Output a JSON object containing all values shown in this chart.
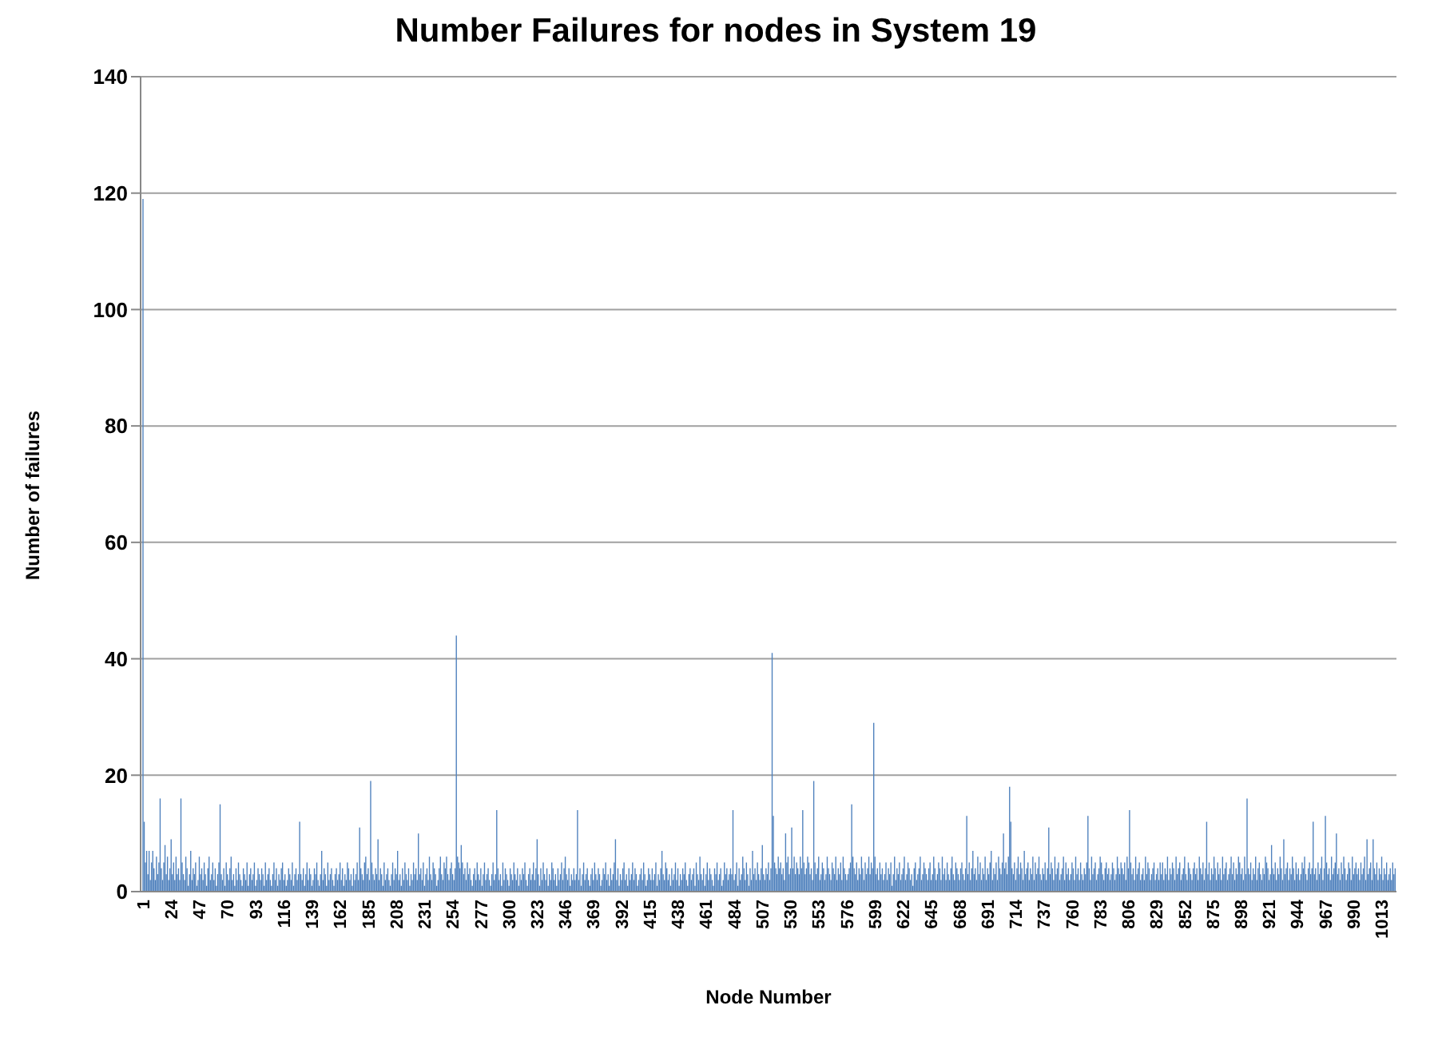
{
  "chart_data": {
    "type": "bar",
    "title": "Number Failures for nodes in System 19",
    "xlabel": "Node Number",
    "ylabel": "Number of failures",
    "x": [
      1,
      2,
      3,
      4,
      5,
      6,
      7,
      8,
      9,
      10,
      11,
      12,
      13,
      14,
      15,
      16,
      17,
      18,
      19,
      20,
      21,
      22,
      23,
      24,
      25,
      26,
      27,
      28,
      29,
      30,
      31,
      32,
      33,
      34,
      35,
      36,
      37,
      38,
      39,
      40,
      41,
      42,
      43,
      44,
      45,
      46,
      47,
      48,
      49,
      50,
      51,
      52,
      53,
      54,
      55,
      56,
      57,
      58,
      59,
      60,
      61,
      62,
      63,
      64,
      65,
      66,
      67,
      68,
      69,
      70,
      71,
      72,
      73,
      74,
      75,
      76,
      77,
      78,
      79,
      80,
      81,
      82,
      83,
      84,
      85,
      86,
      87,
      88,
      89,
      90,
      91,
      92,
      93,
      94,
      95,
      96,
      97,
      98,
      99,
      100,
      101,
      102,
      103,
      104,
      105,
      106,
      107,
      108,
      109,
      110,
      111,
      112,
      113,
      114,
      115,
      116,
      117,
      118,
      119,
      120,
      121,
      122,
      123,
      124,
      125,
      126,
      127,
      128,
      129,
      130,
      131,
      132,
      133,
      134,
      135,
      136,
      137,
      138,
      139,
      140,
      141,
      142,
      143,
      144,
      145,
      146,
      147,
      148,
      149,
      150,
      151,
      152,
      153,
      154,
      155,
      156,
      157,
      158,
      159,
      160,
      161,
      162,
      163,
      164,
      165,
      166,
      167,
      168,
      169,
      170,
      171,
      172,
      173,
      174,
      175,
      176,
      177,
      178,
      179,
      180,
      181,
      182,
      183,
      184,
      185,
      186,
      187,
      188,
      189,
      190,
      191,
      192,
      193,
      194,
      195,
      196,
      197,
      198,
      199,
      200,
      201,
      202,
      203,
      204,
      205,
      206,
      207,
      208,
      209,
      210,
      211,
      212,
      213,
      214,
      215,
      216,
      217,
      218,
      219,
      220,
      221,
      222,
      223,
      224,
      225,
      226,
      227,
      228,
      229,
      230,
      231,
      232,
      233,
      234,
      235,
      236,
      237,
      238,
      239,
      240,
      241,
      242,
      243,
      244,
      245,
      246,
      247,
      248,
      249,
      250,
      251,
      252,
      253,
      254,
      255,
      256,
      257,
      258,
      259,
      260,
      261,
      262,
      263,
      264,
      265,
      266,
      267,
      268,
      269,
      270,
      271,
      272,
      273,
      274,
      275,
      276,
      277,
      278,
      279,
      280,
      281,
      282,
      283,
      284,
      285,
      286,
      287,
      288,
      289,
      290,
      291,
      292,
      293,
      294,
      295,
      296,
      297,
      298,
      299,
      300,
      301,
      302,
      303,
      304,
      305,
      306,
      307,
      308,
      309,
      310,
      311,
      312,
      313,
      314,
      315,
      316,
      317,
      318,
      319,
      320,
      321,
      322,
      323,
      324,
      325,
      326,
      327,
      328,
      329,
      330,
      331,
      332,
      333,
      334,
      335,
      336,
      337,
      338,
      339,
      340,
      341,
      342,
      343,
      344,
      345,
      346,
      347,
      348,
      349,
      350,
      351,
      352,
      353,
      354,
      355,
      356,
      357,
      358,
      359,
      360,
      361,
      362,
      363,
      364,
      365,
      366,
      367,
      368,
      369,
      370,
      371,
      372,
      373,
      374,
      375,
      376,
      377,
      378,
      379,
      380,
      381,
      382,
      383,
      384,
      385,
      386,
      387,
      388,
      389,
      390,
      391,
      392,
      393,
      394,
      395,
      396,
      397,
      398,
      399,
      400,
      401,
      402,
      403,
      404,
      405,
      406,
      407,
      408,
      409,
      410,
      411,
      412,
      413,
      414,
      415,
      416,
      417,
      418,
      419,
      420,
      421,
      422,
      423,
      424,
      425,
      426,
      427,
      428,
      429,
      430,
      431,
      432,
      433,
      434,
      435,
      436,
      437,
      438,
      439,
      440,
      441,
      442,
      443,
      444,
      445,
      446,
      447,
      448,
      449,
      450,
      451,
      452,
      453,
      454,
      455,
      456,
      457,
      458,
      459,
      460,
      461,
      462,
      463,
      464,
      465,
      466,
      467,
      468,
      469,
      470,
      471,
      472,
      473,
      474,
      475,
      476,
      477,
      478,
      479,
      480,
      481,
      482,
      483,
      484,
      485,
      486,
      487,
      488,
      489,
      490,
      491,
      492,
      493,
      494,
      495,
      496,
      497,
      498,
      499,
      500,
      501,
      502,
      503,
      504,
      505,
      506,
      507,
      508,
      509,
      510,
      511,
      512,
      513,
      514,
      515,
      516,
      517,
      518,
      519,
      520,
      521,
      522,
      523,
      524,
      525,
      526,
      527,
      528,
      529,
      530,
      531,
      532,
      533,
      534,
      535,
      536,
      537,
      538,
      539,
      540,
      541,
      542,
      543,
      544,
      545,
      546,
      547,
      548,
      549,
      550,
      551,
      552,
      553,
      554,
      555,
      556,
      557,
      558,
      559,
      560,
      561,
      562,
      563,
      564,
      565,
      566,
      567,
      568,
      569,
      570,
      571,
      572,
      573,
      574,
      575,
      576,
      577,
      578,
      579,
      580,
      581,
      582,
      583,
      584,
      585,
      586,
      587,
      588,
      589,
      590,
      591,
      592,
      593,
      594,
      595,
      596,
      597,
      598,
      599,
      600,
      601,
      602,
      603,
      604,
      605,
      606,
      607,
      608,
      609,
      610,
      611,
      612,
      613,
      614,
      615,
      616,
      617,
      618,
      619,
      620,
      621,
      622,
      623,
      624,
      625,
      626,
      627,
      628,
      629,
      630,
      631,
      632,
      633,
      634,
      635,
      636,
      637,
      638,
      639,
      640,
      641,
      642,
      643,
      644,
      645,
      646,
      647,
      648,
      649,
      650,
      651,
      652,
      653,
      654,
      655,
      656,
      657,
      658,
      659,
      660,
      661,
      662,
      663,
      664,
      665,
      666,
      667,
      668,
      669,
      670,
      671,
      672,
      673,
      674,
      675,
      676,
      677,
      678,
      679,
      680,
      681,
      682,
      683,
      684,
      685,
      686,
      687,
      688,
      689,
      690,
      691,
      692,
      693,
      694,
      695,
      696,
      697,
      698,
      699,
      700,
      701,
      702,
      703,
      704,
      705,
      706,
      707,
      708,
      709,
      710,
      711,
      712,
      713,
      714,
      715,
      716,
      717,
      718,
      719,
      720,
      721,
      722,
      723,
      724,
      725,
      726,
      727,
      728,
      729,
      730,
      731,
      732,
      733,
      734,
      735,
      736,
      737,
      738,
      739,
      740,
      741,
      742,
      743,
      744,
      745,
      746,
      747,
      748,
      749,
      750,
      751,
      752,
      753,
      754,
      755,
      756,
      757,
      758,
      759,
      760,
      761,
      762,
      763,
      764,
      765,
      766,
      767,
      768,
      769,
      770,
      771,
      772,
      773,
      774,
      775,
      776,
      777,
      778,
      779,
      780,
      781,
      782,
      783,
      784,
      785,
      786,
      787,
      788,
      789,
      790,
      791,
      792,
      793,
      794,
      795,
      796,
      797,
      798,
      799,
      800,
      801,
      802,
      803,
      804,
      805,
      806,
      807,
      808,
      809,
      810,
      811,
      812,
      813,
      814,
      815,
      816,
      817,
      818,
      819,
      820,
      821,
      822,
      823,
      824,
      825,
      826,
      827,
      828,
      829,
      830,
      831,
      832,
      833,
      834,
      835,
      836,
      837,
      838,
      839,
      840,
      841,
      842,
      843,
      844,
      845,
      846,
      847,
      848,
      849,
      850,
      851,
      852,
      853,
      854,
      855,
      856,
      857,
      858,
      859,
      860,
      861,
      862,
      863,
      864,
      865,
      866,
      867,
      868,
      869,
      870,
      871,
      872,
      873,
      874,
      875,
      876,
      877,
      878,
      879,
      880,
      881,
      882,
      883,
      884,
      885,
      886,
      887,
      888,
      889,
      890,
      891,
      892,
      893,
      894,
      895,
      896,
      897,
      898,
      899,
      900,
      901,
      902,
      903,
      904,
      905,
      906,
      907,
      908,
      909,
      910,
      911,
      912,
      913,
      914,
      915,
      916,
      917,
      918,
      919,
      920,
      921,
      922,
      923,
      924,
      925,
      926,
      927,
      928,
      929,
      930,
      931,
      932,
      933,
      934,
      935,
      936,
      937,
      938,
      939,
      940,
      941,
      942,
      943,
      944,
      945,
      946,
      947,
      948,
      949,
      950,
      951,
      952,
      953,
      954,
      955,
      956,
      957,
      958,
      959,
      960,
      961,
      962,
      963,
      964,
      965,
      966,
      967,
      968,
      969,
      970,
      971,
      972,
      973,
      974,
      975,
      976,
      977,
      978,
      979,
      980,
      981,
      982,
      983,
      984,
      985,
      986,
      987,
      988,
      989,
      990,
      991,
      992,
      993,
      994,
      995,
      996,
      997,
      998,
      999,
      1000,
      1001,
      1002,
      1003,
      1004,
      1005,
      1006,
      1007,
      1008,
      1009,
      1010,
      1011,
      1012,
      1013,
      1014,
      1015,
      1016,
      1017,
      1018,
      1019,
      1020,
      1021,
      1022,
      1023,
      1024
    ],
    "values": [
      119,
      12,
      5,
      7,
      3,
      7,
      2,
      5,
      7,
      4,
      2,
      6,
      3,
      5,
      16,
      4,
      2,
      5,
      8,
      3,
      6,
      2,
      4,
      9,
      3,
      5,
      2,
      6,
      3,
      4,
      2,
      16,
      5,
      3,
      2,
      6,
      4,
      1,
      3,
      7,
      2,
      4,
      3,
      5,
      1,
      2,
      6,
      3,
      4,
      2,
      5,
      3,
      1,
      4,
      6,
      2,
      3,
      5,
      2,
      4,
      1,
      3,
      5,
      15,
      3,
      2,
      4,
      1,
      5,
      3,
      2,
      4,
      6,
      2,
      3,
      1,
      4,
      2,
      5,
      3,
      2,
      1,
      4,
      3,
      2,
      5,
      1,
      3,
      4,
      2,
      3,
      5,
      1,
      2,
      4,
      3,
      2,
      4,
      3,
      1,
      5,
      2,
      3,
      4,
      2,
      1,
      3,
      5,
      2,
      4,
      1,
      3,
      2,
      4,
      5,
      2,
      3,
      1,
      2,
      4,
      3,
      2,
      5,
      1,
      3,
      4,
      2,
      3,
      12,
      3,
      2,
      4,
      1,
      3,
      5,
      2,
      4,
      3,
      1,
      2,
      4,
      3,
      5,
      2,
      1,
      3,
      7,
      2,
      4,
      3,
      1,
      5,
      2,
      3,
      4,
      2,
      1,
      3,
      4,
      2,
      3,
      5,
      2,
      4,
      1,
      3,
      2,
      5,
      4,
      2,
      3,
      1,
      4,
      2,
      3,
      5,
      2,
      11,
      4,
      3,
      2,
      5,
      6,
      3,
      4,
      2,
      19,
      5,
      3,
      2,
      4,
      3,
      9,
      2,
      4,
      3,
      1,
      5,
      2,
      3,
      4,
      2,
      1,
      3,
      5,
      2,
      4,
      3,
      7,
      2,
      3,
      1,
      4,
      2,
      5,
      3,
      2,
      4,
      1,
      3,
      2,
      5,
      3,
      4,
      2,
      10,
      3,
      4,
      2,
      5,
      1,
      3,
      4,
      2,
      6,
      3,
      2,
      5,
      4,
      3,
      1,
      2,
      4,
      6,
      3,
      2,
      5,
      4,
      6,
      3,
      2,
      4,
      5,
      3,
      2,
      4,
      44,
      6,
      5,
      4,
      8,
      5,
      3,
      4,
      2,
      5,
      3,
      4,
      2,
      1,
      3,
      4,
      2,
      5,
      3,
      2,
      4,
      1,
      3,
      5,
      2,
      3,
      4,
      2,
      1,
      3,
      5,
      2,
      3,
      14,
      4,
      2,
      3,
      1,
      5,
      2,
      4,
      3,
      2,
      1,
      4,
      3,
      2,
      5,
      3,
      2,
      4,
      1,
      3,
      2,
      4,
      3,
      5,
      2,
      1,
      3,
      4,
      2,
      3,
      5,
      2,
      4,
      9,
      3,
      1,
      4,
      2,
      5,
      3,
      2,
      4,
      1,
      3,
      2,
      5,
      4,
      2,
      3,
      1,
      4,
      2,
      3,
      5,
      2,
      4,
      6,
      3,
      2,
      4,
      1,
      3,
      2,
      4,
      2,
      3,
      14,
      2,
      4,
      1,
      3,
      5,
      2,
      3,
      4,
      2,
      1,
      3,
      4,
      2,
      5,
      3,
      2,
      4,
      3,
      1,
      2,
      4,
      3,
      5,
      2,
      3,
      1,
      4,
      2,
      3,
      5,
      9,
      2,
      4,
      1,
      3,
      2,
      4,
      5,
      2,
      3,
      1,
      4,
      2,
      3,
      5,
      2,
      4,
      3,
      1,
      2,
      3,
      4,
      2,
      5,
      3,
      1,
      2,
      4,
      3,
      2,
      4,
      2,
      3,
      5,
      1,
      3,
      2,
      4,
      7,
      3,
      2,
      5,
      4,
      2,
      3,
      1,
      4,
      2,
      3,
      5,
      2,
      4,
      1,
      3,
      2,
      4,
      3,
      5,
      2,
      1,
      3,
      4,
      2,
      3,
      4,
      1,
      5,
      3,
      2,
      6,
      3,
      2,
      4,
      1,
      3,
      5,
      2,
      4,
      3,
      2,
      1,
      4,
      3,
      5,
      2,
      3,
      4,
      1,
      2,
      5,
      3,
      4,
      2,
      3,
      4,
      3,
      14,
      2,
      3,
      5,
      1,
      4,
      2,
      3,
      6,
      4,
      2,
      5,
      3,
      1,
      4,
      2,
      7,
      3,
      4,
      2,
      5,
      3,
      2,
      4,
      8,
      3,
      2,
      4,
      3,
      5,
      2,
      4,
      41,
      13,
      5,
      4,
      3,
      6,
      4,
      5,
      3,
      4,
      2,
      10,
      5,
      6,
      3,
      4,
      11,
      4,
      6,
      3,
      5,
      4,
      3,
      6,
      4,
      14,
      5,
      3,
      4,
      6,
      5,
      3,
      4,
      2,
      19,
      5,
      3,
      4,
      6,
      2,
      3,
      5,
      4,
      2,
      3,
      6,
      4,
      3,
      2,
      5,
      4,
      3,
      6,
      2,
      4,
      3,
      5,
      2,
      6,
      4,
      3,
      2,
      3,
      4,
      5,
      15,
      6,
      4,
      3,
      5,
      2,
      4,
      3,
      6,
      4,
      2,
      5,
      3,
      4,
      6,
      3,
      5,
      4,
      29,
      6,
      3,
      4,
      2,
      5,
      3,
      4,
      2,
      3,
      5,
      2,
      4,
      3,
      5,
      1,
      3,
      6,
      2,
      4,
      3,
      5,
      2,
      3,
      4,
      6,
      2,
      3,
      5,
      4,
      2,
      3,
      1,
      4,
      5,
      2,
      3,
      4,
      6,
      2,
      3,
      5,
      4,
      3,
      2,
      4,
      5,
      2,
      3,
      6,
      4,
      2,
      3,
      5,
      4,
      2,
      6,
      3,
      4,
      2,
      5,
      3,
      2,
      4,
      6,
      3,
      2,
      5,
      4,
      3,
      2,
      4,
      5,
      3,
      2,
      4,
      13,
      3,
      5,
      2,
      4,
      7,
      3,
      4,
      2,
      6,
      3,
      5,
      2,
      4,
      3,
      6,
      2,
      4,
      3,
      5,
      7,
      2,
      4,
      3,
      5,
      2,
      6,
      4,
      3,
      5,
      10,
      4,
      5,
      3,
      6,
      18,
      12,
      4,
      3,
      5,
      2,
      4,
      6,
      3,
      5,
      4,
      2,
      7,
      3,
      4,
      5,
      2,
      4,
      3,
      6,
      2,
      5,
      3,
      4,
      6,
      3,
      2,
      4,
      3,
      5,
      2,
      4,
      11,
      3,
      5,
      4,
      2,
      6,
      3,
      4,
      5,
      2,
      3,
      4,
      6,
      2,
      5,
      3,
      4,
      2,
      3,
      5,
      4,
      2,
      6,
      3,
      4,
      2,
      5,
      3,
      2,
      4,
      3,
      5,
      13,
      4,
      2,
      6,
      3,
      4,
      5,
      2,
      3,
      4,
      6,
      5,
      3,
      2,
      4,
      5,
      3,
      4,
      2,
      3,
      5,
      4,
      2,
      3,
      6,
      4,
      3,
      5,
      4,
      3,
      5,
      2,
      6,
      4,
      14,
      5,
      3,
      4,
      2,
      6,
      3,
      4,
      5,
      2,
      3,
      4,
      2,
      6,
      3,
      5,
      4,
      2,
      3,
      4,
      5,
      2,
      3,
      4,
      2,
      5,
      3,
      5,
      2,
      4,
      3,
      6,
      2,
      4,
      3,
      5,
      4,
      2,
      6,
      3,
      4,
      5,
      2,
      3,
      4,
      6,
      3,
      2,
      5,
      4,
      3,
      2,
      4,
      5,
      3,
      4,
      2,
      6,
      4,
      3,
      5,
      2,
      4,
      12,
      3,
      5,
      2,
      4,
      3,
      6,
      4,
      2,
      5,
      3,
      4,
      2,
      6,
      3,
      4,
      5,
      2,
      3,
      4,
      6,
      3,
      5,
      2,
      4,
      3,
      6,
      5,
      3,
      4,
      2,
      6,
      3,
      16,
      4,
      3,
      5,
      2,
      4,
      3,
      6,
      2,
      4,
      5,
      3,
      2,
      4,
      3,
      6,
      5,
      4,
      2,
      3,
      8,
      4,
      3,
      5,
      2,
      4,
      3,
      6,
      4,
      2,
      9,
      3,
      4,
      5,
      2,
      4,
      3,
      6,
      4,
      2,
      5,
      3,
      4,
      2,
      3,
      5,
      4,
      6,
      3,
      2,
      4,
      5,
      3,
      4,
      12,
      3,
      4,
      2,
      5,
      3,
      4,
      6,
      2,
      4,
      13,
      5,
      3,
      4,
      2,
      6,
      3,
      4,
      5,
      10,
      3,
      4,
      2,
      5,
      3,
      6,
      4,
      2,
      3,
      5,
      4,
      2,
      6,
      3,
      4,
      5,
      3,
      4,
      2,
      5,
      3,
      4,
      6,
      2,
      9,
      3,
      4,
      5,
      2,
      9,
      4,
      3,
      5,
      2,
      4,
      3,
      6,
      2,
      4,
      3,
      5,
      2,
      3,
      4,
      2,
      5,
      3,
      4
    ],
    "color": "#4f81bd",
    "xlim": [
      -1,
      1025
    ],
    "xticks": [
      1,
      24,
      47,
      70,
      93,
      116,
      139,
      162,
      185,
      208,
      231,
      254,
      277,
      300,
      323,
      346,
      369,
      392,
      415,
      438,
      461,
      484,
      507,
      530,
      553,
      576,
      599,
      622,
      645,
      668,
      691,
      714,
      737,
      760,
      783,
      806,
      829,
      852,
      875,
      898,
      921,
      944,
      967,
      990,
      1013
    ],
    "ylim": [
      0,
      140
    ],
    "yticks": [
      0,
      20,
      40,
      60,
      80,
      100,
      120,
      140
    ],
    "grid": "y",
    "legend": false
  }
}
